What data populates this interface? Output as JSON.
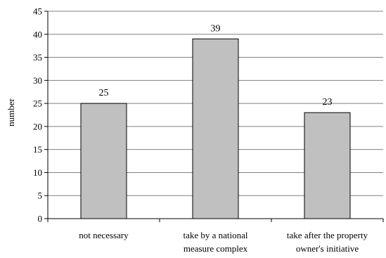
{
  "chart_data": {
    "type": "bar",
    "ylabel": "number",
    "categories": [
      [
        "not necessary"
      ],
      [
        "take by a national",
        "measure complex"
      ],
      [
        "take after the property",
        "owner's initiative"
      ]
    ],
    "values": [
      25,
      39,
      23
    ],
    "data_labels": [
      "25",
      "39",
      "23"
    ],
    "ylim": [
      0,
      45
    ],
    "yticks": [
      0,
      5,
      10,
      15,
      20,
      25,
      30,
      35,
      40,
      45
    ],
    "grid": true,
    "bar_color": "#c0c0c0",
    "bar_stroke": "#000000",
    "grid_color": "#808080"
  }
}
